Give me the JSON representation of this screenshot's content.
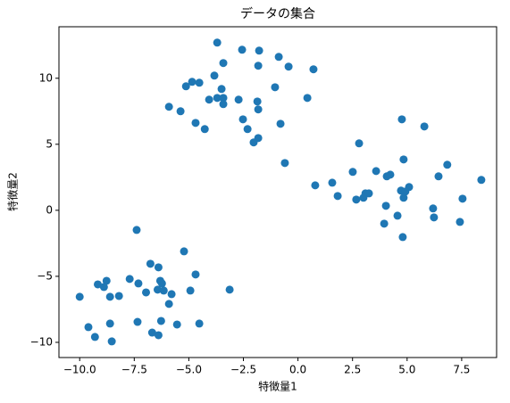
{
  "chart_data": {
    "type": "scatter",
    "title": "データの集合",
    "x_label": "特徴量1",
    "y_label": "特徴量2",
    "color": "#1f77b4",
    "x": [
      -3.7,
      -2.56,
      -1.78,
      -0.88,
      0.71,
      -3.42,
      -1.82,
      -0.43,
      -3.83,
      -4.85,
      -4.52,
      -5.13,
      -1.05,
      -3.5,
      -3.7,
      -3.42,
      -4.07,
      -2.72,
      -1.86,
      0.43,
      -3.42,
      -1.82,
      -5.91,
      -5.38,
      -2.52,
      -4.69,
      -0.8,
      -4.27,
      -2.31,
      -1.82,
      -2.03,
      -0.6,
      4.76,
      5.79,
      2.8,
      4.84,
      6.84,
      3.58,
      2.51,
      4.23,
      4.07,
      6.44,
      8.4,
      1.57,
      0.79,
      5.09,
      3.09,
      3.25,
      4.72,
      4.92,
      1.82,
      3.0,
      2.67,
      4.84,
      7.54,
      4.03,
      6.19,
      4.56,
      6.23,
      3.95,
      7.42,
      4.8,
      -7.39,
      -5.22,
      -6.76,
      -6.39,
      -4.69,
      -7.71,
      -8.77,
      -6.31,
      -9.17,
      -7.31,
      -6.23,
      -8.89,
      -6.43,
      -10.0,
      -6.96,
      -8.61,
      -8.2,
      -5.79,
      -4.93,
      -6.15,
      -3.13,
      -5.91,
      -7.35,
      -6.27,
      -5.54,
      -4.52,
      -8.61,
      -9.6,
      -6.68,
      -6.39,
      -9.3,
      -8.53
    ],
    "values": [
      12.7,
      12.16,
      12.09,
      11.62,
      10.68,
      11.15,
      10.95,
      10.88,
      10.2,
      9.73,
      9.66,
      9.39,
      9.32,
      9.19,
      8.51,
      8.51,
      8.38,
      8.38,
      8.24,
      8.51,
      8.04,
      7.64,
      7.84,
      7.5,
      6.89,
      6.62,
      6.55,
      6.15,
      6.15,
      5.47,
      5.14,
      3.58,
      6.89,
      6.35,
      5.07,
      3.85,
      3.45,
      2.97,
      2.91,
      2.7,
      2.57,
      2.57,
      2.3,
      2.09,
      1.89,
      1.76,
      1.28,
      1.28,
      1.49,
      1.42,
      1.08,
      0.95,
      0.81,
      0.95,
      0.88,
      0.34,
      0.14,
      -0.41,
      -0.54,
      -1.01,
      -0.88,
      -2.03,
      -1.49,
      -3.11,
      -4.05,
      -4.32,
      -4.86,
      -5.2,
      -5.34,
      -5.34,
      -5.61,
      -5.54,
      -5.54,
      -5.81,
      -6.01,
      -6.55,
      -6.22,
      -6.55,
      -6.49,
      -6.35,
      -6.08,
      -6.08,
      -6.01,
      -7.09,
      -8.45,
      -8.38,
      -8.65,
      -8.58,
      -8.58,
      -8.85,
      -9.26,
      -9.46,
      -9.59,
      -9.93
    ],
    "xlim": [
      -10.95,
      9.1
    ],
    "ylim": [
      -11.15,
      13.9
    ],
    "xticks": [
      {
        "value": -10,
        "label": "−10.0"
      },
      {
        "value": -7.5,
        "label": "−7.5"
      },
      {
        "value": -5,
        "label": "−5.0"
      },
      {
        "value": -2.5,
        "label": "−2.5"
      },
      {
        "value": 0,
        "label": "0.0"
      },
      {
        "value": 2.5,
        "label": "2.5"
      },
      {
        "value": 5,
        "label": "5.0"
      },
      {
        "value": 7.5,
        "label": "7.5"
      }
    ],
    "yticks": [
      {
        "value": -10,
        "label": "−10"
      },
      {
        "value": -5,
        "label": "−5"
      },
      0,
      5,
      10
    ]
  }
}
